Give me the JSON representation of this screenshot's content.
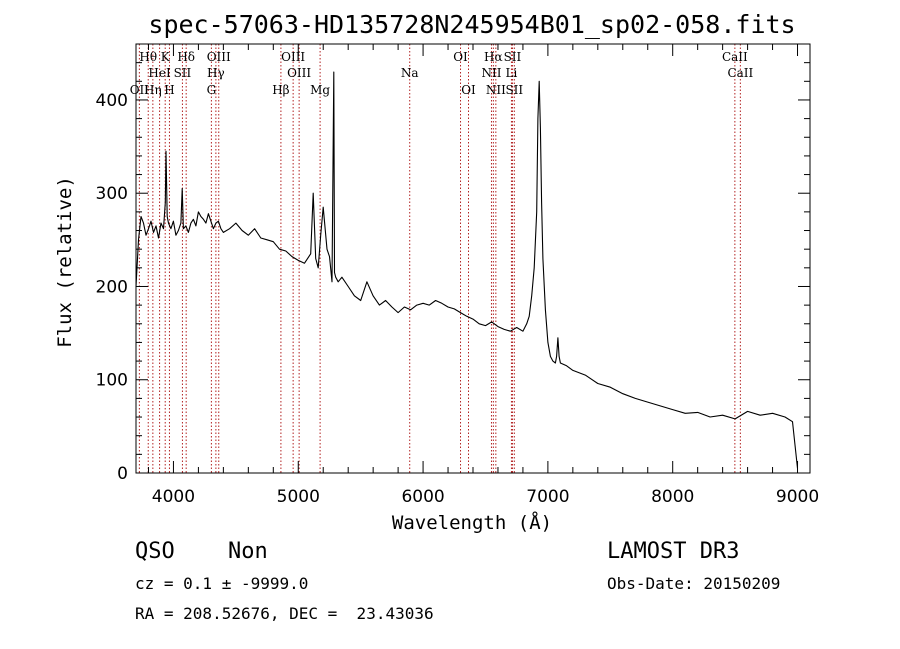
{
  "chart_data": {
    "type": "line",
    "title": "spec-57063-HD135728N245954B01_sp02-058.fits",
    "xlabel": "Wavelength (Å)",
    "ylabel": "Flux (relative)",
    "xlim": [
      3700,
      9100
    ],
    "ylim": [
      0,
      460
    ],
    "xticks": [
      4000,
      5000,
      6000,
      7000,
      8000,
      9000
    ],
    "yticks": [
      0,
      100,
      200,
      300,
      400
    ],
    "series": [
      {
        "name": "spectrum",
        "x": [
          3700,
          3720,
          3740,
          3760,
          3780,
          3800,
          3820,
          3840,
          3860,
          3880,
          3900,
          3920,
          3935,
          3940,
          3950,
          3960,
          3980,
          4000,
          4020,
          4040,
          4060,
          4070,
          4080,
          4100,
          4120,
          4140,
          4160,
          4180,
          4200,
          4220,
          4240,
          4260,
          4280,
          4300,
          4320,
          4340,
          4360,
          4380,
          4400,
          4450,
          4500,
          4550,
          4600,
          4650,
          4700,
          4750,
          4800,
          4850,
          4900,
          4950,
          5000,
          5050,
          5100,
          5120,
          5140,
          5160,
          5180,
          5200,
          5230,
          5250,
          5270,
          5285,
          5290,
          5300,
          5320,
          5350,
          5400,
          5450,
          5500,
          5550,
          5600,
          5650,
          5700,
          5750,
          5800,
          5850,
          5900,
          5950,
          6000,
          6050,
          6100,
          6150,
          6200,
          6250,
          6300,
          6350,
          6400,
          6450,
          6500,
          6550,
          6600,
          6650,
          6700,
          6750,
          6800,
          6830,
          6850,
          6870,
          6890,
          6910,
          6920,
          6930,
          6940,
          6950,
          6960,
          6980,
          7000,
          7020,
          7040,
          7060,
          7070,
          7080,
          7090,
          7100,
          7150,
          7200,
          7300,
          7400,
          7500,
          7600,
          7700,
          7800,
          7900,
          8000,
          8100,
          8200,
          8300,
          8400,
          8500,
          8600,
          8700,
          8800,
          8900,
          8960,
          8980,
          9000
        ],
        "values": [
          200,
          250,
          275,
          268,
          255,
          262,
          270,
          258,
          265,
          252,
          268,
          262,
          290,
          345,
          275,
          268,
          262,
          270,
          255,
          260,
          268,
          305,
          262,
          265,
          258,
          268,
          272,
          265,
          280,
          275,
          272,
          268,
          278,
          270,
          262,
          268,
          270,
          262,
          258,
          262,
          268,
          260,
          255,
          262,
          252,
          250,
          248,
          240,
          238,
          232,
          228,
          225,
          235,
          300,
          230,
          220,
          255,
          285,
          240,
          232,
          205,
          430,
          215,
          210,
          205,
          210,
          200,
          190,
          185,
          205,
          190,
          180,
          185,
          178,
          172,
          178,
          175,
          180,
          182,
          180,
          185,
          182,
          178,
          176,
          172,
          168,
          165,
          160,
          158,
          162,
          157,
          154,
          152,
          156,
          152,
          160,
          168,
          190,
          220,
          280,
          380,
          420,
          370,
          290,
          230,
          175,
          140,
          125,
          120,
          118,
          125,
          145,
          125,
          118,
          115,
          110,
          105,
          96,
          92,
          85,
          80,
          76,
          72,
          68,
          64,
          65,
          60,
          62,
          58,
          66,
          62,
          64,
          60,
          55,
          30,
          5
        ]
      }
    ],
    "line_labels": [
      {
        "name": "OII",
        "wavelength": 3727,
        "row": 3
      },
      {
        "name": "Hθ",
        "wavelength": 3798,
        "row": 1
      },
      {
        "name": "Hη",
        "wavelength": 3835,
        "row": 3
      },
      {
        "name": "HeI",
        "wavelength": 3889,
        "row": 2
      },
      {
        "name": "K",
        "wavelength": 3934,
        "row": 1
      },
      {
        "name": "H",
        "wavelength": 3968,
        "row": 3
      },
      {
        "name": "SII",
        "wavelength": 4072,
        "row": 2
      },
      {
        "name": "Hδ",
        "wavelength": 4102,
        "row": 1
      },
      {
        "name": "Hγ",
        "wavelength": 4340,
        "row": 2
      },
      {
        "name": "G",
        "wavelength": 4304,
        "row": 3
      },
      {
        "name": "OIII",
        "wavelength": 4363,
        "row": 1
      },
      {
        "name": "Hβ",
        "wavelength": 4861,
        "row": 3
      },
      {
        "name": "OIII",
        "wavelength": 4959,
        "row": 1
      },
      {
        "name": "OIII",
        "wavelength": 5007,
        "row": 2
      },
      {
        "name": "Mg",
        "wavelength": 5175,
        "row": 3
      },
      {
        "name": "Na",
        "wavelength": 5893,
        "row": 2
      },
      {
        "name": "OI",
        "wavelength": 6300,
        "row": 1
      },
      {
        "name": "OI",
        "wavelength": 6364,
        "row": 3
      },
      {
        "name": "NII",
        "wavelength": 6548,
        "row": 2
      },
      {
        "name": "Hα",
        "wavelength": 6563,
        "row": 1
      },
      {
        "name": "NII",
        "wavelength": 6583,
        "row": 3
      },
      {
        "name": "Li",
        "wavelength": 6708,
        "row": 2
      },
      {
        "name": "SII",
        "wavelength": 6716,
        "row": 1
      },
      {
        "name": "SII",
        "wavelength": 6731,
        "row": 3
      },
      {
        "name": "CaII",
        "wavelength": 8498,
        "row": 1
      },
      {
        "name": "CaII",
        "wavelength": 8542,
        "row": 2
      }
    ],
    "marker_lines": [
      3727,
      3798,
      3835,
      3889,
      3934,
      3968,
      4072,
      4102,
      4304,
      4340,
      4363,
      4861,
      4959,
      5007,
      5175,
      5893,
      6300,
      6364,
      6548,
      6563,
      6583,
      6708,
      6716,
      6731,
      8498,
      8542
    ]
  },
  "info": {
    "class_label": "QSO",
    "subclass_label": "Non",
    "redshift_line": "cz = 0.1 ± -9999.0",
    "coords_line": "RA = 208.52676, DEC =  23.43036",
    "survey": "LAMOST DR3",
    "obs_date": "Obs-Date: 20150209"
  },
  "colors": {
    "spectrum": "#000000",
    "marker_line": "#b22222",
    "axis": "#000000"
  }
}
